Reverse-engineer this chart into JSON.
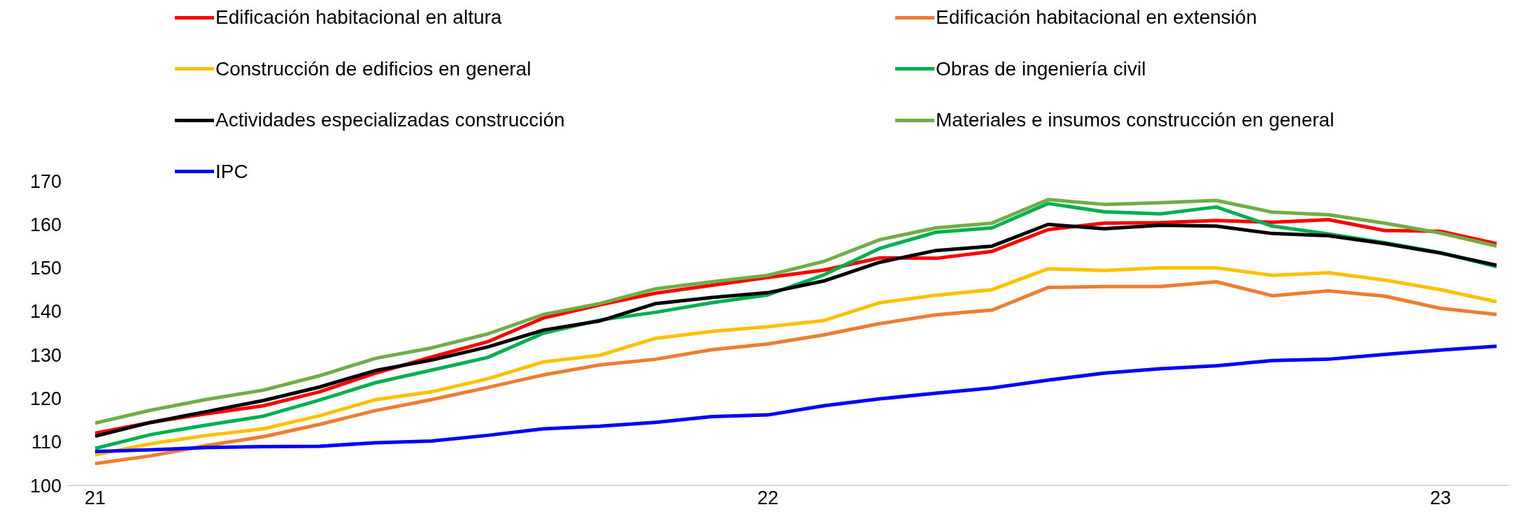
{
  "chart_data": {
    "type": "line",
    "categories": [
      "21",
      null,
      null,
      null,
      null,
      null,
      null,
      null,
      null,
      null,
      null,
      null,
      "22",
      null,
      null,
      null,
      null,
      null,
      null,
      null,
      null,
      null,
      null,
      null,
      "23",
      null
    ],
    "ylim": [
      100,
      170
    ],
    "yticks": [
      100,
      110,
      120,
      130,
      140,
      150,
      160,
      170
    ],
    "grid": false,
    "legend": "top",
    "marker": "none",
    "line_style": "solid",
    "series": [
      {
        "name": "Edificación habitacional en altura",
        "color": "#ff0000",
        "values": [
          112,
          114.5,
          116.5,
          118.3,
          121.5,
          125.8,
          129.5,
          133,
          138.5,
          141.5,
          144.2,
          146,
          147.8,
          149.5,
          152.3,
          152.2,
          153.8,
          158.8,
          160.3,
          160.4,
          160.9,
          160.5,
          161.1,
          158.6,
          158.4,
          155.6
        ]
      },
      {
        "name": "Edificación habitacional en extensión",
        "color": "#ed7d31",
        "values": [
          105,
          106.8,
          109.2,
          111.2,
          114,
          117.2,
          119.7,
          122.5,
          125.4,
          127.7,
          129,
          131.2,
          132.5,
          134.6,
          137.2,
          139.2,
          140.3,
          145.5,
          145.7,
          145.7,
          146.8,
          143.6,
          144.7,
          143.5,
          140.7,
          139.3
        ]
      },
      {
        "name": "Construcción de edificios en general",
        "color": "#ffc000",
        "values": [
          107,
          109.6,
          111.5,
          113,
          116,
          119.7,
          121.5,
          124.5,
          128.4,
          129.9,
          133.8,
          135.4,
          136.5,
          137.9,
          142,
          143.7,
          145,
          149.8,
          149.4,
          150,
          150,
          148.3,
          148.9,
          147.2,
          145,
          142.2
        ]
      },
      {
        "name": "Obras de ingeniería civil",
        "color": "#00b050",
        "values": [
          108.5,
          111.7,
          113.9,
          115.9,
          119.6,
          123.6,
          126.5,
          129.4,
          135,
          138,
          139.8,
          142,
          143.8,
          148.4,
          154.5,
          158.2,
          159.2,
          164.8,
          162.9,
          162.4,
          164,
          159.6,
          157.8,
          155.8,
          153.5,
          150.3
        ]
      },
      {
        "name": "Actividades especializadas construcción",
        "color": "#000000",
        "values": [
          111.3,
          114.5,
          117,
          119.5,
          122.6,
          126.4,
          128.8,
          131.8,
          135.7,
          137.8,
          141.8,
          143.2,
          144.3,
          147,
          151.3,
          154,
          155,
          160,
          159,
          159.8,
          159.6,
          157.9,
          157.4,
          155.6,
          153.4,
          150.6
        ]
      },
      {
        "name": "Materiales e insumos construcción en general",
        "color": "#70ad47",
        "values": [
          114.3,
          117.3,
          119.8,
          121.9,
          125.2,
          129.2,
          131.6,
          134.8,
          139.3,
          141.8,
          145.2,
          146.8,
          148.3,
          151.5,
          156.5,
          159.2,
          160.3,
          165.7,
          164.6,
          165,
          165.5,
          162.8,
          162.2,
          160.3,
          158,
          155
        ]
      },
      {
        "name": "IPC",
        "color": "#0000ff",
        "values": [
          107.8,
          108.2,
          108.7,
          108.9,
          109,
          109.8,
          110.2,
          111.5,
          113,
          113.6,
          114.5,
          115.8,
          116.2,
          118.3,
          119.9,
          121.2,
          122.4,
          124.2,
          125.8,
          126.8,
          127.5,
          128.7,
          129,
          130.1,
          131.1,
          132
        ]
      }
    ]
  }
}
